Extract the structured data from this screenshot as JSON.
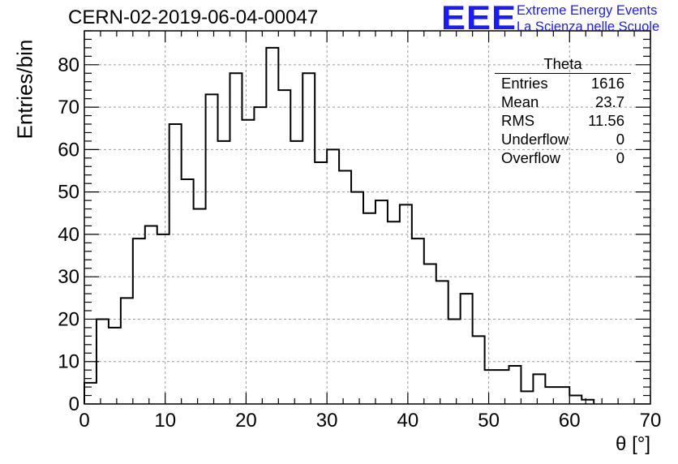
{
  "title": "CERN-02-2019-06-04-00047",
  "logo": {
    "mark": "EEE",
    "line1": "Extreme Energy Events",
    "line2": "La Scienza nelle Scuole",
    "color": "#1a1aff"
  },
  "stats": {
    "name": "Theta",
    "rows": [
      {
        "label": "Entries",
        "value": "1616"
      },
      {
        "label": "Mean",
        "value": "23.7"
      },
      {
        "label": "RMS",
        "value": "11.56"
      },
      {
        "label": "Underflow",
        "value": "0"
      },
      {
        "label": "Overflow",
        "value": "0"
      }
    ]
  },
  "chart_data": {
    "type": "bar",
    "style": "step-histogram",
    "xlabel": "θ [°]",
    "ylabel": "Entries/bin",
    "xlim": [
      0,
      70
    ],
    "ylim": [
      0,
      88
    ],
    "bin_width": 1.5,
    "x_ticks": [
      0,
      10,
      20,
      30,
      40,
      50,
      60,
      70
    ],
    "y_ticks": [
      0,
      10,
      20,
      30,
      40,
      50,
      60,
      70,
      80
    ],
    "grid": true,
    "values": [
      5,
      20,
      18,
      25,
      39,
      42,
      40,
      66,
      53,
      46,
      73,
      62,
      78,
      67,
      70,
      84,
      74,
      62,
      78,
      57,
      60,
      55,
      50,
      45,
      48,
      43,
      47,
      39,
      33,
      29,
      20,
      26,
      16,
      8,
      8,
      9,
      3,
      7,
      4,
      4,
      2,
      1
    ]
  }
}
